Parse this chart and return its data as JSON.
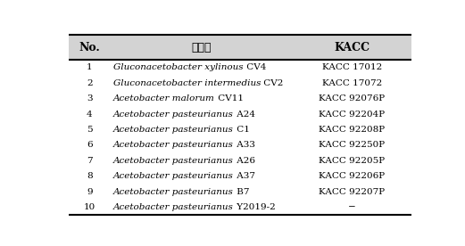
{
  "headers": [
    "No.",
    "균주명",
    "KACC"
  ],
  "rows": [
    [
      "1",
      "Gluconacetobacter xylinous CV4",
      "KACC 17012"
    ],
    [
      "2",
      "Gluconacetobacter intermedius CV2",
      "KACC 17072"
    ],
    [
      "3",
      "Acetobacter malorum CV11",
      "KACC 92076P"
    ],
    [
      "4",
      "Acetobacter pasteurianus A24",
      "KACC 92204P"
    ],
    [
      "5",
      "Acetobacter pasteurianus C1",
      "KACC 92208P"
    ],
    [
      "6",
      "Acetobacter pasteurianus A33",
      "KACC 92250P"
    ],
    [
      "7",
      "Acetobacter pasteurianus A26",
      "KACC 92205P"
    ],
    [
      "8",
      "Acetobacter pasteurianus A37",
      "KACC 92206P"
    ],
    [
      "9",
      "Acetobacter pasteurianus B7",
      "KACC 92207P"
    ],
    [
      "10",
      "Acetobacter pasteurianus Y2019-2",
      "−"
    ]
  ],
  "italic_species": [
    [
      "Gluconacetobacter xylinous",
      " CV4"
    ],
    [
      "Gluconacetobacter intermedius",
      " CV2"
    ],
    [
      "Acetobacter malorum",
      " CV11"
    ],
    [
      "Acetobacter pasteurianus",
      " A24"
    ],
    [
      "Acetobacter pasteurianus",
      " C1"
    ],
    [
      "Acetobacter pasteurianus",
      " A33"
    ],
    [
      "Acetobacter pasteurianus",
      " A26"
    ],
    [
      "Acetobacter pasteurianus",
      " A37"
    ],
    [
      "Acetobacter pasteurianus",
      " B7"
    ],
    [
      "Acetobacter pasteurianus",
      " Y2019-2"
    ]
  ],
  "header_bg": "#d3d3d3",
  "bg_color": "#ffffff",
  "border_color": "#000000",
  "font_size": 7.5,
  "header_font_size": 9.0,
  "figwidth": 5.21,
  "figheight": 2.76,
  "dpi": 100
}
